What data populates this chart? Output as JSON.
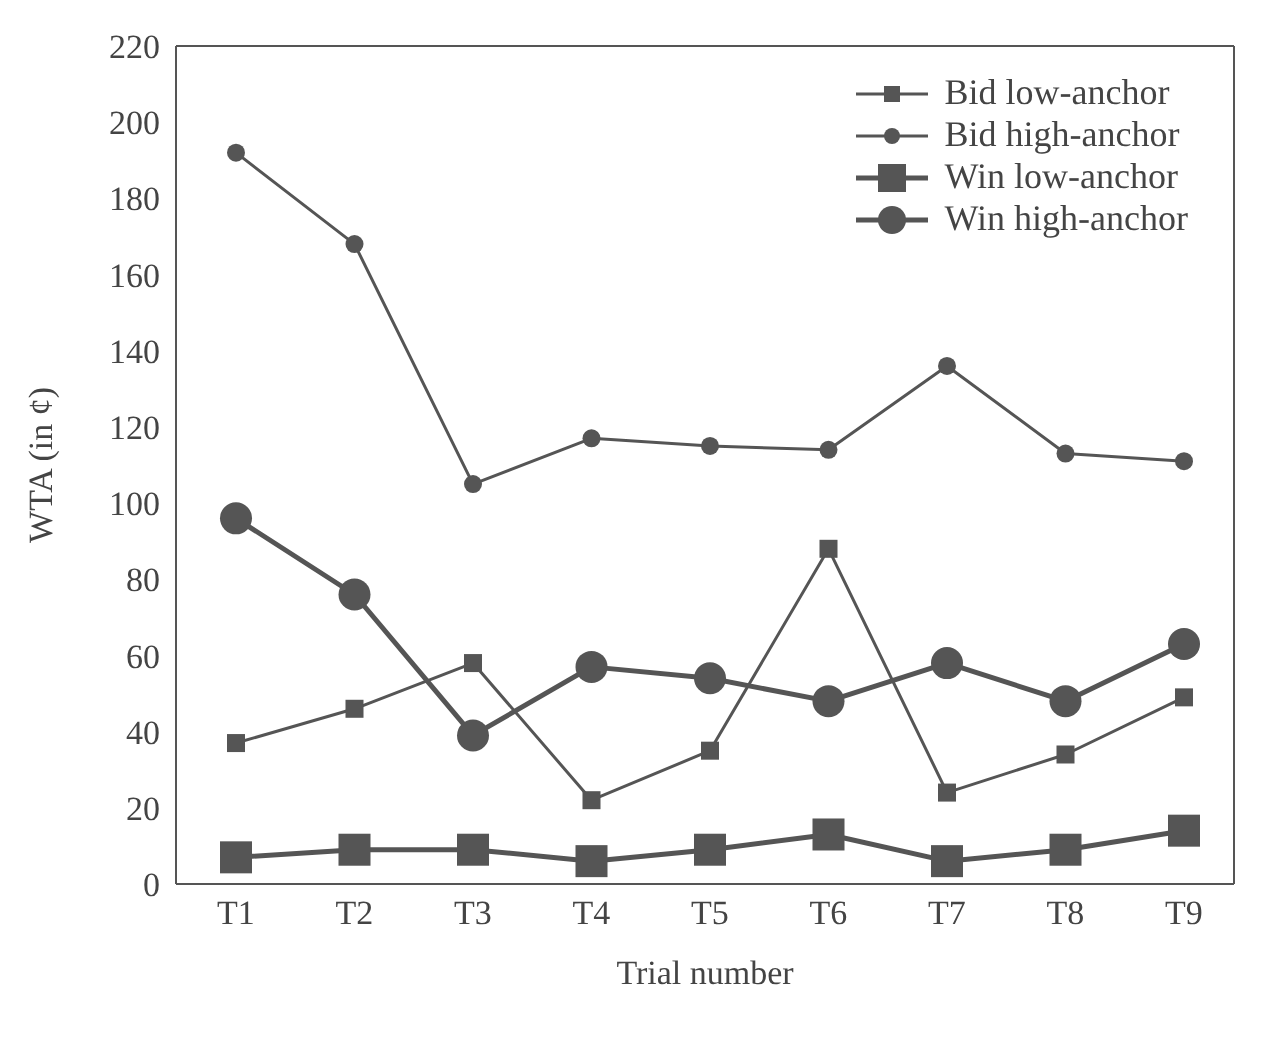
{
  "chart_data": {
    "type": "line",
    "xlabel": "Trial number",
    "ylabel": "WTA (in ¢)",
    "categories": [
      "T1",
      "T2",
      "T3",
      "T4",
      "T5",
      "T6",
      "T7",
      "T8",
      "T9"
    ],
    "ylim": [
      0,
      220
    ],
    "yticks": [
      0,
      20,
      40,
      60,
      80,
      100,
      120,
      140,
      160,
      180,
      200,
      220
    ],
    "grid": false,
    "legend": "top right",
    "line_style": "solid",
    "series": [
      {
        "name": "Bid low-anchor",
        "color": "#555555",
        "marker": "square",
        "values": [
          37,
          46,
          58,
          22,
          35,
          88,
          24,
          34,
          49
        ]
      },
      {
        "name": "Bid high-anchor",
        "color": "#555555",
        "marker": "circle",
        "values": [
          192,
          168,
          105,
          117,
          115,
          114,
          136,
          113,
          111
        ]
      },
      {
        "name": "Win low-anchor",
        "color": "#555555",
        "marker": "square",
        "values": [
          7,
          9,
          9,
          6,
          9,
          13,
          6,
          9,
          14
        ]
      },
      {
        "name": "Win high-anchor",
        "color": "#555555",
        "marker": "circle",
        "values": [
          96,
          76,
          39,
          57,
          54,
          48,
          58,
          48,
          63
        ]
      }
    ]
  }
}
